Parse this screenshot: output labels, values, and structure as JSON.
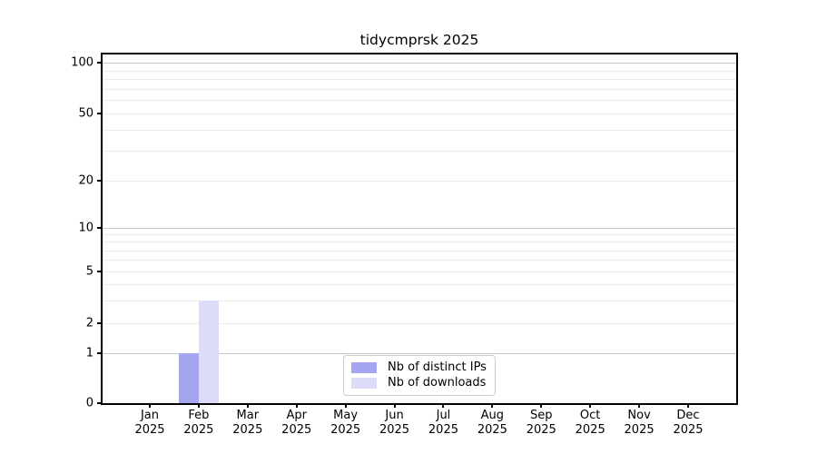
{
  "chart_data": {
    "type": "bar",
    "title": "tidycmprsk 2025",
    "categories": [
      "Jan 2025",
      "Feb 2025",
      "Mar 2025",
      "Apr 2025",
      "May 2025",
      "Jun 2025",
      "Jul 2025",
      "Aug 2025",
      "Sep 2025",
      "Oct 2025",
      "Nov 2025",
      "Dec 2025"
    ],
    "x_tick_months": [
      "Jan",
      "Feb",
      "Mar",
      "Apr",
      "May",
      "Jun",
      "Jul",
      "Aug",
      "Sep",
      "Oct",
      "Nov",
      "Dec"
    ],
    "x_tick_year": "2025",
    "series": [
      {
        "name": "Nb of distinct IPs",
        "color": "#a5a5f0",
        "values": [
          0,
          1,
          0,
          0,
          0,
          0,
          0,
          0,
          0,
          0,
          0,
          0
        ]
      },
      {
        "name": "Nb of downloads",
        "color": "#dcdcf8",
        "values": [
          0,
          3,
          0,
          0,
          0,
          0,
          0,
          0,
          0,
          0,
          0,
          0
        ]
      }
    ],
    "yticks": [
      0,
      1,
      2,
      5,
      10,
      20,
      50,
      100
    ],
    "ytick_labels": [
      "0",
      "1",
      "2",
      "5",
      "10",
      "20",
      "50",
      "100"
    ],
    "ylim": [
      0,
      100
    ],
    "yscale": "log-like",
    "grid": "horizontal major and minor gridlines",
    "legend_position": "inside lower-center",
    "colors": {
      "axis": "#000000",
      "major_grid": "#c6c6c6",
      "minor_grid": "#ececec",
      "legend_border": "#cccccc",
      "background": "#ffffff"
    }
  }
}
